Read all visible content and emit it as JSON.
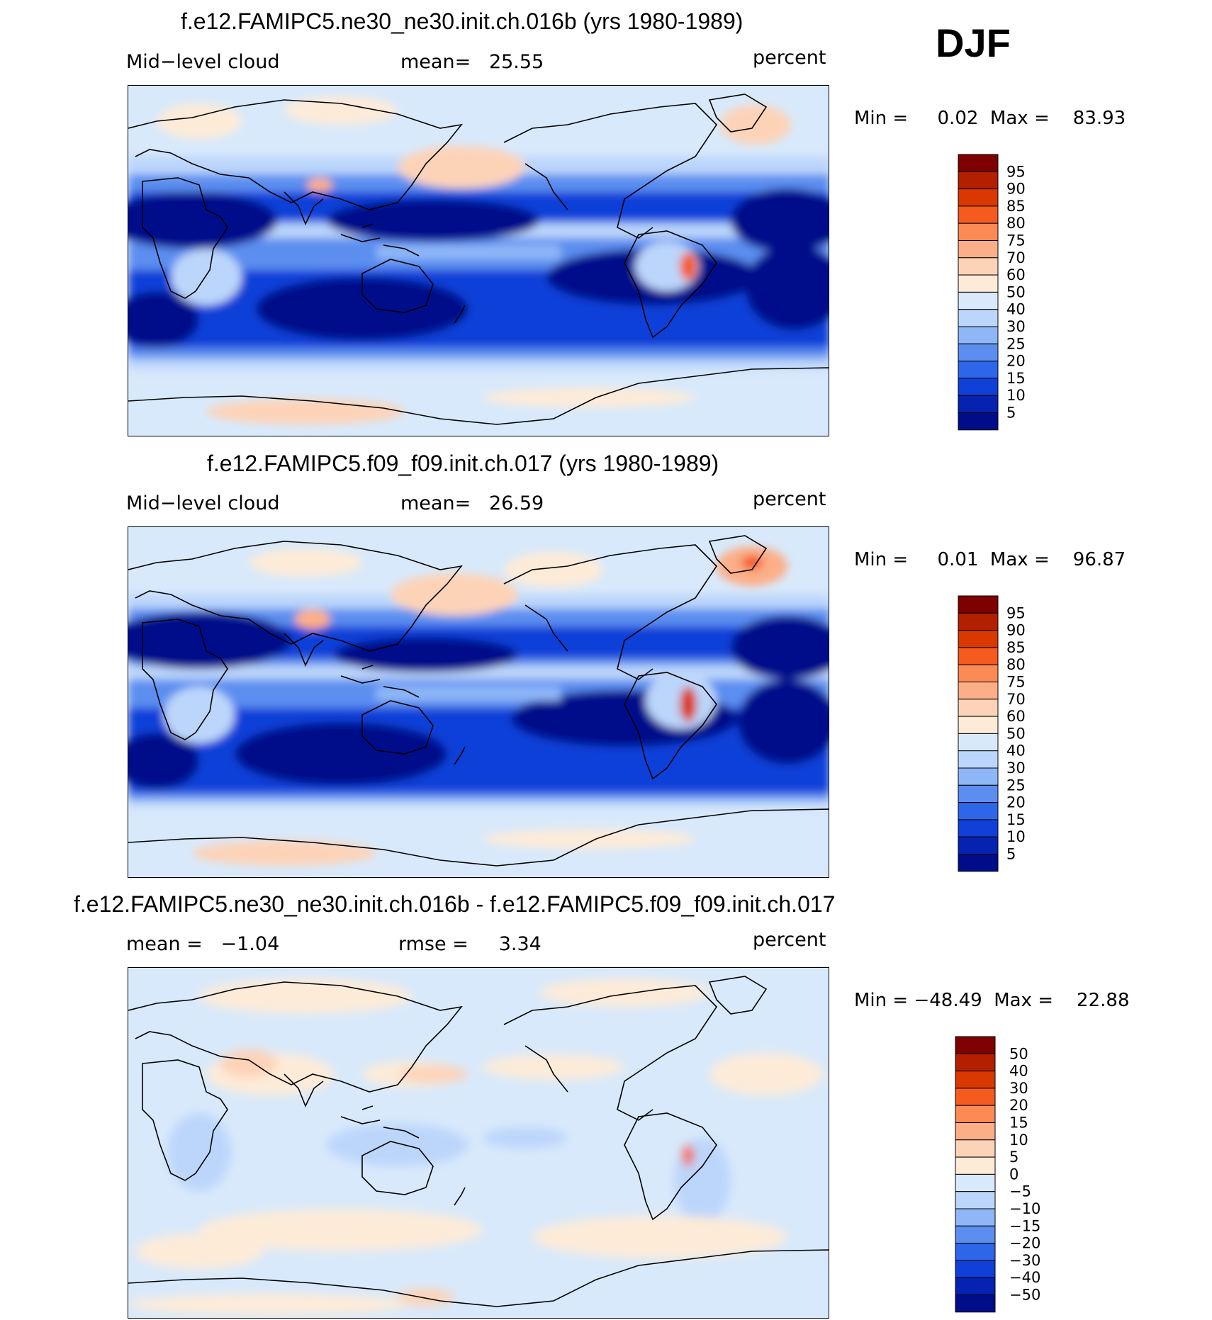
{
  "season": "DJF",
  "panels": [
    {
      "title": "f.e12.FAMIPC5.ne30_ne30.init.ch.016b (yrs 1980-1989)",
      "left_label": "Mid−level cloud",
      "center_label": "mean=   25.55",
      "right_label": "percent",
      "minmax": "Min =     0.02  Max =    83.93",
      "colorbar": {
        "labels": [
          "95",
          "90",
          "85",
          "80",
          "75",
          "70",
          "60",
          "50",
          "40",
          "30",
          "25",
          "20",
          "15",
          "10",
          "5"
        ],
        "colors": [
          "#7f0000",
          "#b22000",
          "#d93800",
          "#f55a1e",
          "#fb8a54",
          "#fcaf87",
          "#fdd3b8",
          "#fdebd8",
          "#d8e9fb",
          "#bcd6fb",
          "#8fb7f7",
          "#5c8ef0",
          "#2e66ea",
          "#1040d8",
          "#0622b0",
          "#000d8a"
        ]
      }
    },
    {
      "title": "f.e12.FAMIPC5.f09_f09.init.ch.017 (yrs 1980-1989)",
      "left_label": "Mid−level cloud",
      "center_label": "mean=   26.59",
      "right_label": "percent",
      "minmax": "Min =     0.01  Max =    96.87",
      "colorbar": {
        "labels": [
          "95",
          "90",
          "85",
          "80",
          "75",
          "70",
          "60",
          "50",
          "40",
          "30",
          "25",
          "20",
          "15",
          "10",
          "5"
        ],
        "colors": [
          "#7f0000",
          "#b22000",
          "#d93800",
          "#f55a1e",
          "#fb8a54",
          "#fcaf87",
          "#fdd3b8",
          "#fdebd8",
          "#d8e9fb",
          "#bcd6fb",
          "#8fb7f7",
          "#5c8ef0",
          "#2e66ea",
          "#1040d8",
          "#0622b0",
          "#000d8a"
        ]
      }
    },
    {
      "title": "f.e12.FAMIPC5.ne30_ne30.init.ch.016b - f.e12.FAMIPC5.f09_f09.init.ch.017",
      "left_label": "mean =   −1.04",
      "center_label": "rmse =     3.34",
      "right_label": "percent",
      "minmax": "Min = −48.49  Max =    22.88",
      "colorbar": {
        "labels": [
          "50",
          "40",
          "30",
          "20",
          "15",
          "10",
          "5",
          "0",
          "−5",
          "−10",
          "−15",
          "−20",
          "−30",
          "−40",
          "−50"
        ],
        "colors": [
          "#7f0000",
          "#b22000",
          "#d93800",
          "#f55a1e",
          "#fb8a54",
          "#fcaf87",
          "#fdd3b8",
          "#fdebd8",
          "#d8e9fb",
          "#bcd6fb",
          "#8fb7f7",
          "#5c8ef0",
          "#2e66ea",
          "#1040d8",
          "#0622b0",
          "#000d8a"
        ]
      }
    }
  ]
}
